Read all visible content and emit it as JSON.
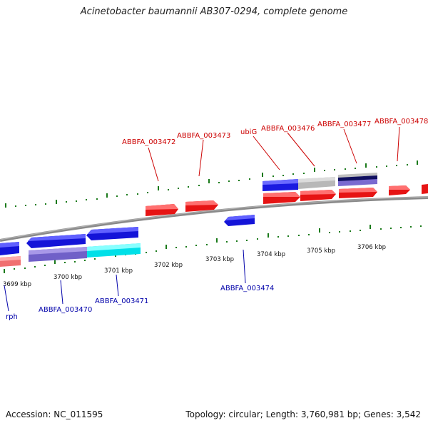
{
  "title": "Acinetobacter baumannii AB307-0294, complete genome",
  "footer": {
    "accession": "Accession: NC_011595",
    "summary": "Topology: circular; Length: 3,760,981 bp; Genes: 3,542"
  },
  "colors": {
    "forward_gene": "#ee1111",
    "reverse_gene": "#1111dd",
    "top_label": "#cc0000",
    "bottom_label": "#0000aa",
    "tick": "#1a7a1a",
    "backbone": "#888888"
  },
  "ticks": {
    "kbp_labels": [
      "3699 kbp",
      "3700 kbp",
      "3701 kbp",
      "3702 kbp",
      "3703 kbp",
      "3704 kbp",
      "3705 kbp",
      "3706 kbp"
    ]
  },
  "genes": {
    "top_labels": [
      "ABBFA_003472",
      "ABBFA_003473",
      "ubiG",
      "ABBFA_003476",
      "ABBFA_003477",
      "ABBFA_003478"
    ],
    "bottom_labels": [
      "rph",
      "ABBFA_003470",
      "ABBFA_003471",
      "ABBFA_003474"
    ]
  }
}
